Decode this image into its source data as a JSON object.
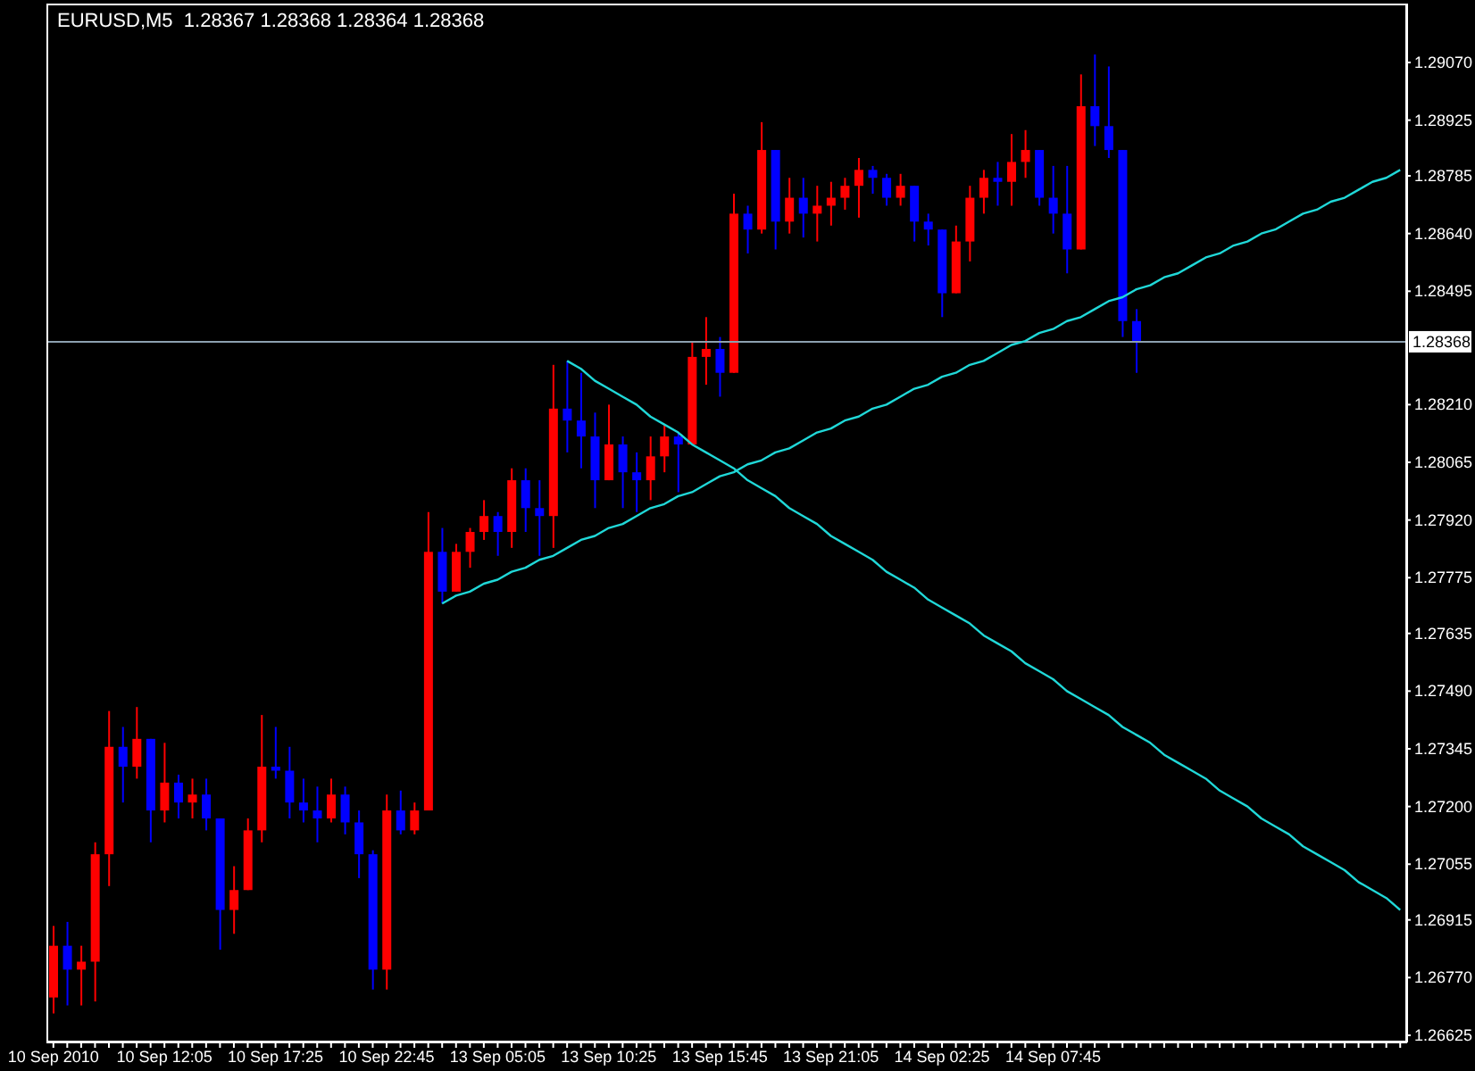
{
  "chart_data": {
    "type": "candlestick",
    "title": "EURUSD,M5  1.28367 1.28368 1.28364 1.28368",
    "categories": [
      "10 Sep 2010",
      null,
      null,
      null,
      null,
      null,
      null,
      null,
      "10 Sep 12:05",
      null,
      null,
      null,
      null,
      null,
      null,
      null,
      "10 Sep 17:25",
      null,
      null,
      null,
      null,
      null,
      null,
      null,
      "10 Sep 22:45",
      null,
      null,
      null,
      null,
      null,
      null,
      null,
      "13 Sep 05:05",
      null,
      null,
      null,
      null,
      null,
      null,
      null,
      "13 Sep 10:25",
      null,
      null,
      null,
      null,
      null,
      null,
      null,
      "13 Sep 15:45",
      null,
      null,
      null,
      null,
      null,
      null,
      null,
      "13 Sep 21:05",
      null,
      null,
      null,
      null,
      null,
      null,
      null,
      "14 Sep 02:25",
      null,
      null,
      null,
      null,
      null,
      null,
      null,
      "14 Sep 07:45",
      null,
      null,
      null,
      null,
      null,
      null,
      null,
      null,
      null,
      null,
      null,
      null,
      null,
      null,
      null,
      null,
      null,
      null,
      null,
      null,
      null,
      null,
      null,
      null,
      null
    ],
    "ohlc": [
      [
        1.2672,
        1.269,
        1.2668,
        1.2685
      ],
      [
        1.2685,
        1.2691,
        1.267,
        1.2679
      ],
      [
        1.2679,
        1.2685,
        1.267,
        1.2681
      ],
      [
        1.2681,
        1.2711,
        1.2671,
        1.2708
      ],
      [
        1.2708,
        1.2744,
        1.27,
        1.2735
      ],
      [
        1.2735,
        1.274,
        1.2721,
        1.273
      ],
      [
        1.273,
        1.2745,
        1.2727,
        1.2737
      ],
      [
        1.2737,
        1.2737,
        1.2711,
        1.2719
      ],
      [
        1.2719,
        1.2736,
        1.2716,
        1.2726
      ],
      [
        1.2726,
        1.2728,
        1.2717,
        1.2721
      ],
      [
        1.2721,
        1.2727,
        1.2717,
        1.2723
      ],
      [
        1.2723,
        1.2727,
        1.2714,
        1.2717
      ],
      [
        1.2717,
        1.2717,
        1.2684,
        1.2694
      ],
      [
        1.2694,
        1.2705,
        1.2688,
        1.2699
      ],
      [
        1.2699,
        1.2717,
        1.2699,
        1.2714
      ],
      [
        1.2714,
        1.2743,
        1.2711,
        1.273
      ],
      [
        1.273,
        1.274,
        1.2727,
        1.2729
      ],
      [
        1.2729,
        1.2735,
        1.2717,
        1.2721
      ],
      [
        1.2721,
        1.2727,
        1.2716,
        1.2719
      ],
      [
        1.2719,
        1.2725,
        1.2711,
        1.2717
      ],
      [
        1.2717,
        1.2727,
        1.2716,
        1.2723
      ],
      [
        1.2723,
        1.2725,
        1.2713,
        1.2716
      ],
      [
        1.2716,
        1.2719,
        1.2702,
        1.2708
      ],
      [
        1.2708,
        1.2709,
        1.2674,
        1.2679
      ],
      [
        1.2679,
        1.2723,
        1.2674,
        1.2719
      ],
      [
        1.2719,
        1.2724,
        1.2713,
        1.2714
      ],
      [
        1.2714,
        1.2721,
        1.2713,
        1.2719
      ],
      [
        1.2719,
        1.2794,
        1.2719,
        1.2784
      ],
      [
        1.2784,
        1.279,
        1.2771,
        1.2774
      ],
      [
        1.2774,
        1.2786,
        1.2774,
        1.2784
      ],
      [
        1.2784,
        1.279,
        1.278,
        1.2789
      ],
      [
        1.2789,
        1.2797,
        1.2787,
        1.2793
      ],
      [
        1.2793,
        1.2794,
        1.2783,
        1.2789
      ],
      [
        1.2789,
        1.2805,
        1.2785,
        1.2802
      ],
      [
        1.2802,
        1.2805,
        1.2789,
        1.2795
      ],
      [
        1.2795,
        1.2802,
        1.2783,
        1.2793
      ],
      [
        1.2793,
        1.2831,
        1.2785,
        1.282
      ],
      [
        1.282,
        1.2832,
        1.2809,
        1.2817
      ],
      [
        1.2817,
        1.2829,
        1.2805,
        1.2813
      ],
      [
        1.2813,
        1.2819,
        1.2795,
        1.2802
      ],
      [
        1.2802,
        1.2821,
        1.2802,
        1.2811
      ],
      [
        1.2811,
        1.2813,
        1.2795,
        1.2804
      ],
      [
        1.2804,
        1.2809,
        1.2794,
        1.2802
      ],
      [
        1.2802,
        1.2813,
        1.2797,
        1.2808
      ],
      [
        1.2808,
        1.2816,
        1.2804,
        1.2813
      ],
      [
        1.2813,
        1.2814,
        1.2799,
        1.2811
      ],
      [
        1.2811,
        1.2837,
        1.2811,
        1.2833
      ],
      [
        1.2833,
        1.2843,
        1.2826,
        1.2835
      ],
      [
        1.2835,
        1.2838,
        1.2823,
        1.2829
      ],
      [
        1.2829,
        1.2874,
        1.2829,
        1.2869
      ],
      [
        1.2869,
        1.2871,
        1.2859,
        1.2865
      ],
      [
        1.2865,
        1.2892,
        1.2864,
        1.2885
      ],
      [
        1.2885,
        1.2885,
        1.286,
        1.2867
      ],
      [
        1.2867,
        1.2878,
        1.2864,
        1.2873
      ],
      [
        1.2873,
        1.2878,
        1.2863,
        1.2869
      ],
      [
        1.2869,
        1.2876,
        1.2862,
        1.2871
      ],
      [
        1.2871,
        1.2877,
        1.2866,
        1.2873
      ],
      [
        1.2873,
        1.2878,
        1.287,
        1.2876
      ],
      [
        1.2876,
        1.2883,
        1.2868,
        1.288
      ],
      [
        1.288,
        1.2881,
        1.2874,
        1.2878
      ],
      [
        1.2878,
        1.2879,
        1.2871,
        1.2873
      ],
      [
        1.2873,
        1.2879,
        1.2871,
        1.2876
      ],
      [
        1.2876,
        1.2876,
        1.2862,
        1.2867
      ],
      [
        1.2867,
        1.2869,
        1.2861,
        1.2865
      ],
      [
        1.2865,
        1.2865,
        1.2843,
        1.2849
      ],
      [
        1.2849,
        1.2866,
        1.2849,
        1.2862
      ],
      [
        1.2862,
        1.2876,
        1.2857,
        1.2873
      ],
      [
        1.2873,
        1.288,
        1.2869,
        1.2878
      ],
      [
        1.2878,
        1.2882,
        1.2871,
        1.2877
      ],
      [
        1.2877,
        1.2889,
        1.2871,
        1.2882
      ],
      [
        1.2882,
        1.289,
        1.2878,
        1.2885
      ],
      [
        1.2885,
        1.2885,
        1.2871,
        1.2873
      ],
      [
        1.2873,
        1.2881,
        1.2864,
        1.2869
      ],
      [
        1.2869,
        1.2881,
        1.2854,
        1.286
      ],
      [
        1.286,
        1.2904,
        1.286,
        1.2896
      ],
      [
        1.2896,
        1.2909,
        1.2886,
        1.2891
      ],
      [
        1.2891,
        1.2906,
        1.2883,
        1.2885
      ],
      [
        1.2885,
        1.2885,
        1.2838,
        1.2842
      ],
      [
        1.2842,
        1.2845,
        1.2829,
        1.28368
      ],
      null,
      null,
      null,
      null,
      null,
      null,
      null,
      null,
      null,
      null,
      null,
      null,
      null,
      null,
      null,
      null,
      null,
      null,
      null
    ],
    "colors": [
      "#ff0000",
      "#0000ff",
      "#ff0000",
      "#ff0000",
      "#ff0000",
      "#0000ff",
      "#ff0000",
      "#0000ff",
      "#ff0000",
      "#0000ff",
      "#ff0000",
      "#0000ff",
      "#0000ff",
      "#ff0000",
      "#ff0000",
      "#ff0000",
      "#0000ff",
      "#0000ff",
      "#0000ff",
      "#0000ff",
      "#ff0000",
      "#0000ff",
      "#0000ff",
      "#0000ff",
      "#ff0000",
      "#0000ff",
      "#ff0000",
      "#ff0000",
      "#0000ff",
      "#ff0000",
      "#ff0000",
      "#ff0000",
      "#0000ff",
      "#ff0000",
      "#0000ff",
      "#0000ff",
      "#ff0000",
      "#0000ff",
      "#0000ff",
      "#0000ff",
      "#ff0000",
      "#0000ff",
      "#0000ff",
      "#ff0000",
      "#ff0000",
      "#0000ff",
      "#ff0000",
      "#ff0000",
      "#0000ff",
      "#ff0000",
      "#0000ff",
      "#ff0000",
      "#0000ff",
      "#ff0000",
      "#0000ff",
      "#ff0000",
      "#ff0000",
      "#ff0000",
      "#ff0000",
      "#0000ff",
      "#0000ff",
      "#ff0000",
      "#0000ff",
      "#0000ff",
      "#0000ff",
      "#ff0000",
      "#ff0000",
      "#ff0000",
      "#0000ff",
      "#ff0000",
      "#ff0000",
      "#0000ff",
      "#0000ff",
      "#0000ff",
      "#ff0000",
      "#0000ff",
      "#0000ff",
      "#0000ff",
      "#0000ff",
      null,
      null,
      null,
      null,
      null,
      null,
      null,
      null,
      null,
      null,
      null,
      null,
      null,
      null,
      null,
      null,
      null,
      null,
      null
    ],
    "series": [
      {
        "type": "line",
        "color": "#20d8d8",
        "values": [
          null,
          null,
          null,
          null,
          null,
          null,
          null,
          null,
          null,
          null,
          null,
          null,
          null,
          null,
          null,
          null,
          null,
          null,
          null,
          null,
          null,
          null,
          null,
          null,
          null,
          null,
          null,
          null,
          1.2771,
          1.2773,
          1.2774,
          1.2776,
          1.2777,
          1.2779,
          1.278,
          1.2782,
          1.2783,
          1.2785,
          1.2787,
          1.2788,
          1.279,
          1.2791,
          1.2793,
          1.2795,
          1.2796,
          1.2798,
          1.2799,
          1.2801,
          1.2803,
          1.2804,
          1.2806,
          1.2807,
          1.2809,
          1.281,
          1.2812,
          1.2814,
          1.2815,
          1.2817,
          1.2818,
          1.282,
          1.2821,
          1.2823,
          1.2825,
          1.2826,
          1.2828,
          1.2829,
          1.2831,
          1.2832,
          1.2834,
          1.2836,
          1.2837,
          1.2839,
          1.284,
          1.2842,
          1.2843,
          1.2845,
          1.2847,
          1.2848,
          1.285,
          1.2851,
          1.2853,
          1.2854,
          1.2856,
          1.2858,
          1.2859,
          1.2861,
          1.2862,
          1.2864,
          1.2865,
          1.2867,
          1.2869,
          1.287,
          1.2872,
          1.2873,
          1.2875,
          1.2877,
          1.2878,
          1.288
        ]
      },
      {
        "type": "line",
        "color": "#20d8d8",
        "values": [
          null,
          null,
          null,
          null,
          null,
          null,
          null,
          null,
          null,
          null,
          null,
          null,
          null,
          null,
          null,
          null,
          null,
          null,
          null,
          null,
          null,
          null,
          null,
          null,
          null,
          null,
          null,
          null,
          null,
          null,
          null,
          null,
          null,
          null,
          null,
          null,
          null,
          1.2832,
          1.283,
          1.2827,
          1.2825,
          1.2823,
          1.2821,
          1.2818,
          1.2816,
          1.2814,
          1.2811,
          1.2809,
          1.2807,
          1.2805,
          1.2802,
          1.28,
          1.2798,
          1.2795,
          1.2793,
          1.2791,
          1.2788,
          1.2786,
          1.2784,
          1.2782,
          1.2779,
          1.2777,
          1.2775,
          1.2772,
          1.277,
          1.2768,
          1.2766,
          1.2763,
          1.2761,
          1.2759,
          1.2756,
          1.2754,
          1.2752,
          1.2749,
          1.2747,
          1.2745,
          1.2743,
          1.274,
          1.2738,
          1.2736,
          1.2733,
          1.2731,
          1.2729,
          1.2727,
          1.2724,
          1.2722,
          1.272,
          1.2717,
          1.2715,
          1.2713,
          1.271,
          1.2708,
          1.2706,
          1.2704,
          1.2701,
          1.2699,
          1.2697,
          1.2694
        ]
      }
    ],
    "ref_lines": [
      {
        "axis": "y",
        "value": 1.28368,
        "label": "1.28368",
        "color": "#8ca0b0"
      }
    ],
    "ylim": [
      1.26607,
      1.29218
    ],
    "yticks": [
      {
        "value": 1.26625,
        "label": "1.26625"
      },
      {
        "value": 1.2677,
        "label": "1.26770"
      },
      {
        "value": 1.26915,
        "label": "1.26915"
      },
      {
        "value": 1.27055,
        "label": "1.27055"
      },
      {
        "value": 1.272,
        "label": "1.27200"
      },
      {
        "value": 1.27345,
        "label": "1.27345"
      },
      {
        "value": 1.2749,
        "label": "1.27490"
      },
      {
        "value": 1.27635,
        "label": "1.27635"
      },
      {
        "value": 1.27775,
        "label": "1.27775"
      },
      {
        "value": 1.2792,
        "label": "1.27920"
      },
      {
        "value": 1.28065,
        "label": "1.28065"
      },
      {
        "value": 1.2821,
        "label": "1.28210"
      },
      {
        "value": 1.28495,
        "label": "1.28495"
      },
      {
        "value": 1.2864,
        "label": "1.28640"
      },
      {
        "value": 1.28785,
        "label": "1.28785"
      },
      {
        "value": 1.28925,
        "label": "1.28925"
      },
      {
        "value": 1.2907,
        "label": "1.29070"
      }
    ],
    "grid": false,
    "legend": false
  }
}
